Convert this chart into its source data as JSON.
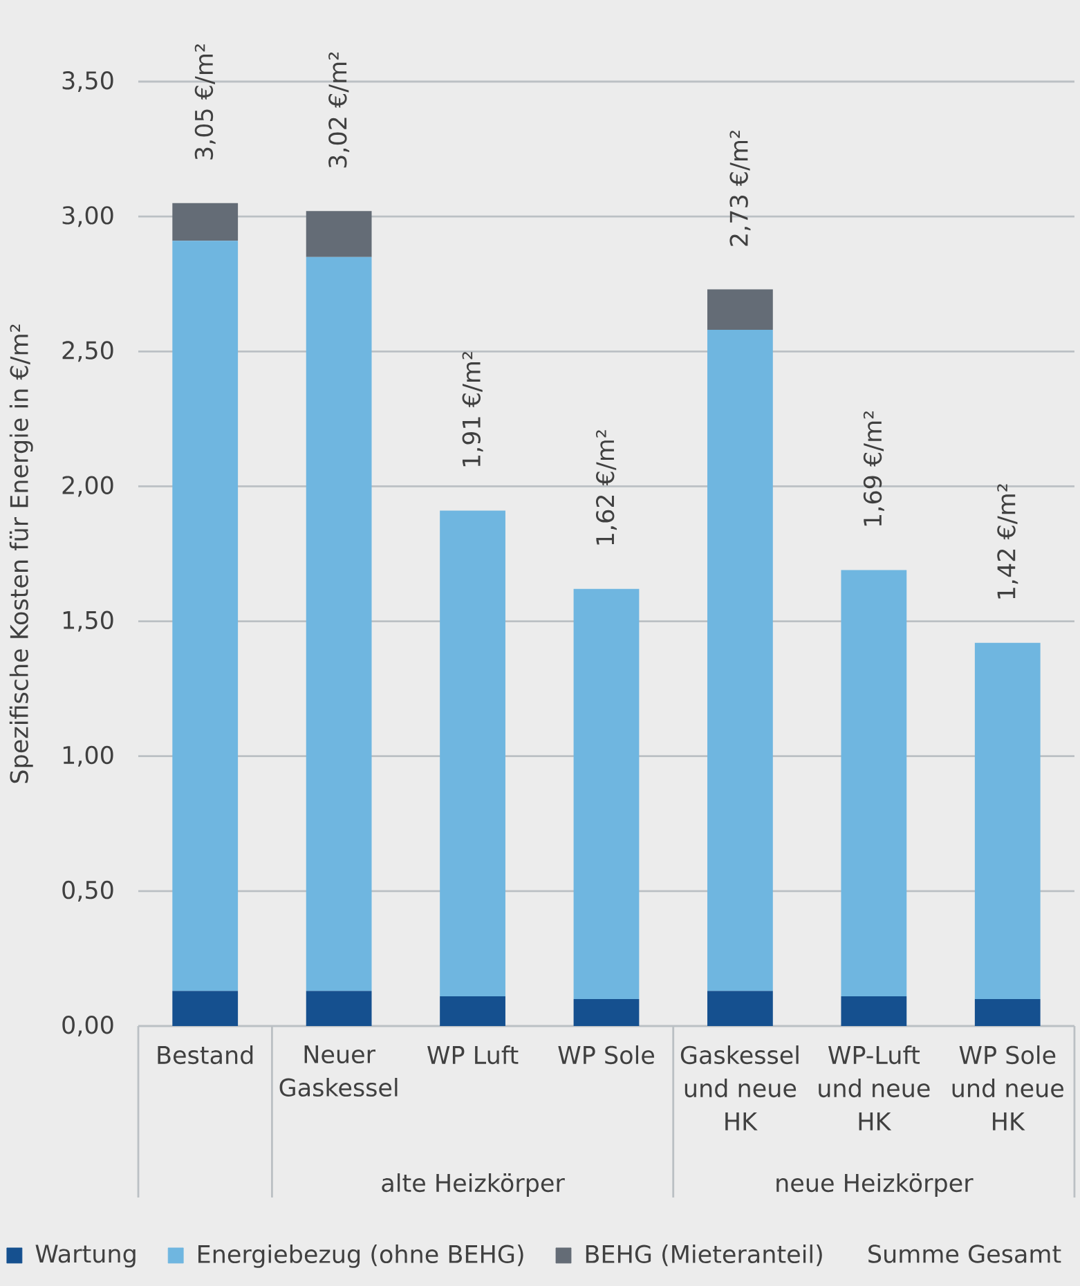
{
  "chart_data": {
    "type": "bar",
    "stacked": true,
    "ylabel": "Spezifische Kosten für Energie in €/m²",
    "categories": [
      "Bestand",
      "Neuer Gaskessel",
      "WP Luft",
      "WP Sole",
      "Gaskessel und neue HK",
      "WP-Luft und neue HK",
      "WP Sole und neue HK"
    ],
    "series": [
      {
        "name": "Wartung",
        "color": "#15508f",
        "values": [
          0.13,
          0.13,
          0.11,
          0.1,
          0.13,
          0.11,
          0.1
        ]
      },
      {
        "name": "Energiebezug (ohne BEHG)",
        "color": "#6fb6e0",
        "values": [
          2.78,
          2.72,
          1.8,
          1.52,
          2.45,
          1.58,
          1.32
        ]
      },
      {
        "name": "BEHG (Mieteranteil)",
        "color": "#646c76",
        "values": [
          0.14,
          0.17,
          null,
          null,
          0.15,
          null,
          null
        ]
      }
    ],
    "totals": [
      "3,05 €/m²",
      "3,02 €/m²",
      "1,91 €/m²",
      "1,62 €/m²",
      "2,73 €/m²",
      "1,69 €/m²",
      "1,42 €/m²"
    ],
    "ylim": [
      0,
      3.5
    ],
    "yticks": [
      {
        "value": 0,
        "label": "0,00"
      },
      {
        "value": 0.5,
        "label": "0,50"
      },
      {
        "value": 1,
        "label": "1,00"
      },
      {
        "value": 1.5,
        "label": "1,50"
      },
      {
        "value": 2,
        "label": "2,00"
      },
      {
        "value": 2.5,
        "label": "2,50"
      },
      {
        "value": 3,
        "label": "3,00"
      },
      {
        "value": 3.5,
        "label": "3,50"
      }
    ],
    "grid": "y",
    "legend": "bottom",
    "annotations": [
      "alte Heizkörper",
      "neue Heizkörper",
      "Summe Gesamt"
    ]
  }
}
